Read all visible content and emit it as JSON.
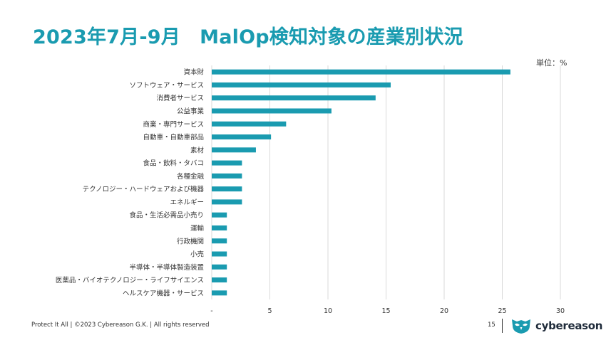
{
  "slide": {
    "title": "2023年7月-9月　MalOp検知対象の産業別状況",
    "unit_label": "単位：%"
  },
  "footer": {
    "text": "Protect It All | ©2023 Cybereason G.K. | All rights reserved",
    "page_number": "15"
  },
  "logo": {
    "text": "cybereason",
    "icon": "owl-logo-icon"
  },
  "colors": {
    "accent": "#1a9bb0",
    "bar": "#1a9bb0",
    "grid": "#d9d9d9",
    "text": "#333333"
  },
  "chart_data": {
    "type": "bar",
    "orientation": "horizontal",
    "categories": [
      "資本財",
      "ソフトウェア・サービス",
      "消費者サービス",
      "公益事業",
      "商業・専門サービス",
      "自動車・自動車部品",
      "素材",
      "食品・飲料・タバコ",
      "各種金融",
      "テクノロジー・ハードウェアおよび機器",
      "エネルギー",
      "食品・生活必需品小売り",
      "運輸",
      "行政機関",
      "小売",
      "半導体・半導体製造装置",
      "医薬品・バイオテクノロジー・ライフサイエンス",
      "ヘルスケア機器・サービス"
    ],
    "values": [
      25.7,
      15.4,
      14.1,
      10.3,
      6.4,
      5.1,
      3.8,
      2.6,
      2.6,
      2.6,
      2.6,
      1.3,
      1.3,
      1.3,
      1.3,
      1.3,
      1.3,
      1.3
    ],
    "xlim": [
      0,
      30
    ],
    "x_ticks": [
      "-",
      "5",
      "10",
      "15",
      "20",
      "25",
      "30"
    ],
    "x_tick_values": [
      0,
      5,
      10,
      15,
      20,
      25,
      30
    ],
    "grid": true,
    "title": "",
    "xlabel": "",
    "ylabel": ""
  }
}
